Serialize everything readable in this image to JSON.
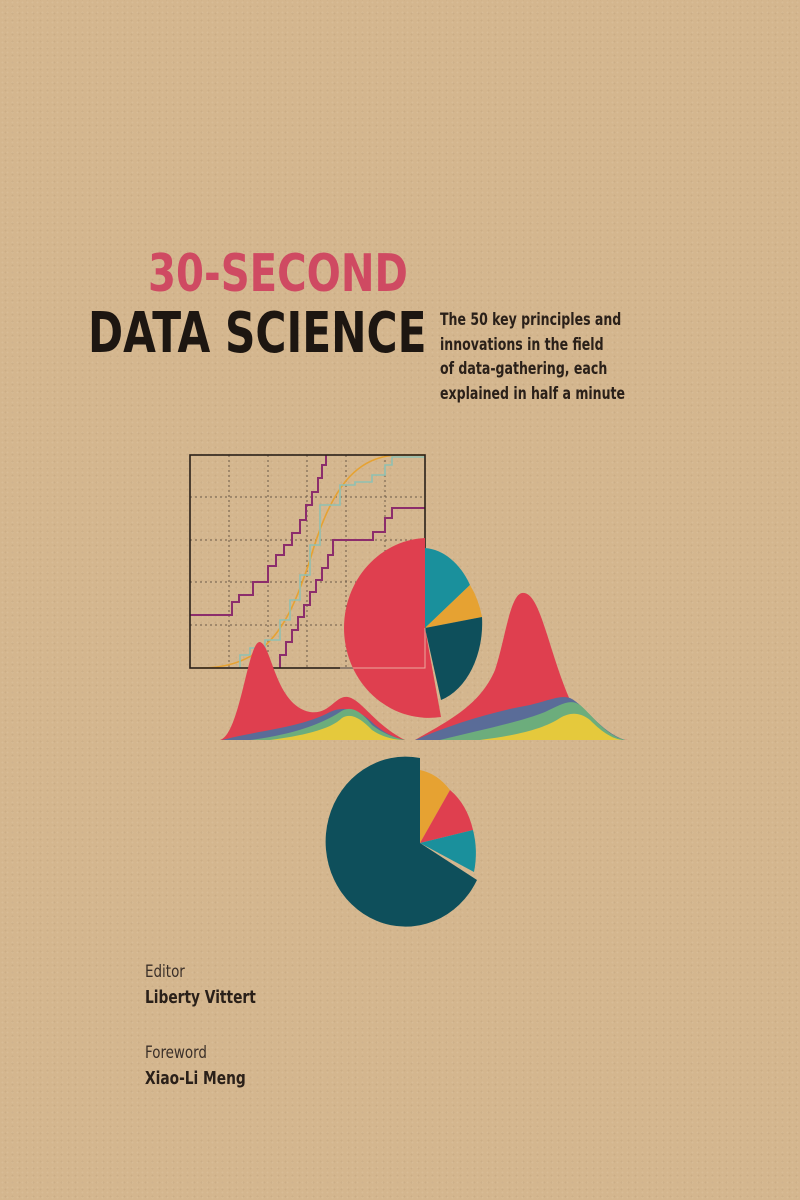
{
  "cover": {
    "title_line1": "30-SECOND",
    "title_line2": "DATA SCIENCE",
    "subtitle_lines": [
      "The 50 key principles and",
      "innovations in the field",
      "of data-gathering, each",
      "explained in half a minute"
    ],
    "editor_label": "Editor",
    "editor_name": "Liberty Vittert",
    "foreword_label": "Foreword",
    "foreword_name": "Xiao-Li Meng"
  },
  "colors": {
    "background": "#d4b68e",
    "title_accent": "#cf4a62",
    "title_dark": "#1d1611",
    "red": "#df3f4f",
    "teal": "#1a909c",
    "orange": "#e6a232",
    "dark_teal": "#0e4f5b",
    "purple": "#8c2d6c",
    "blue": "#5a6c98",
    "green": "#6cad7c",
    "yellow": "#e5c93c"
  }
}
